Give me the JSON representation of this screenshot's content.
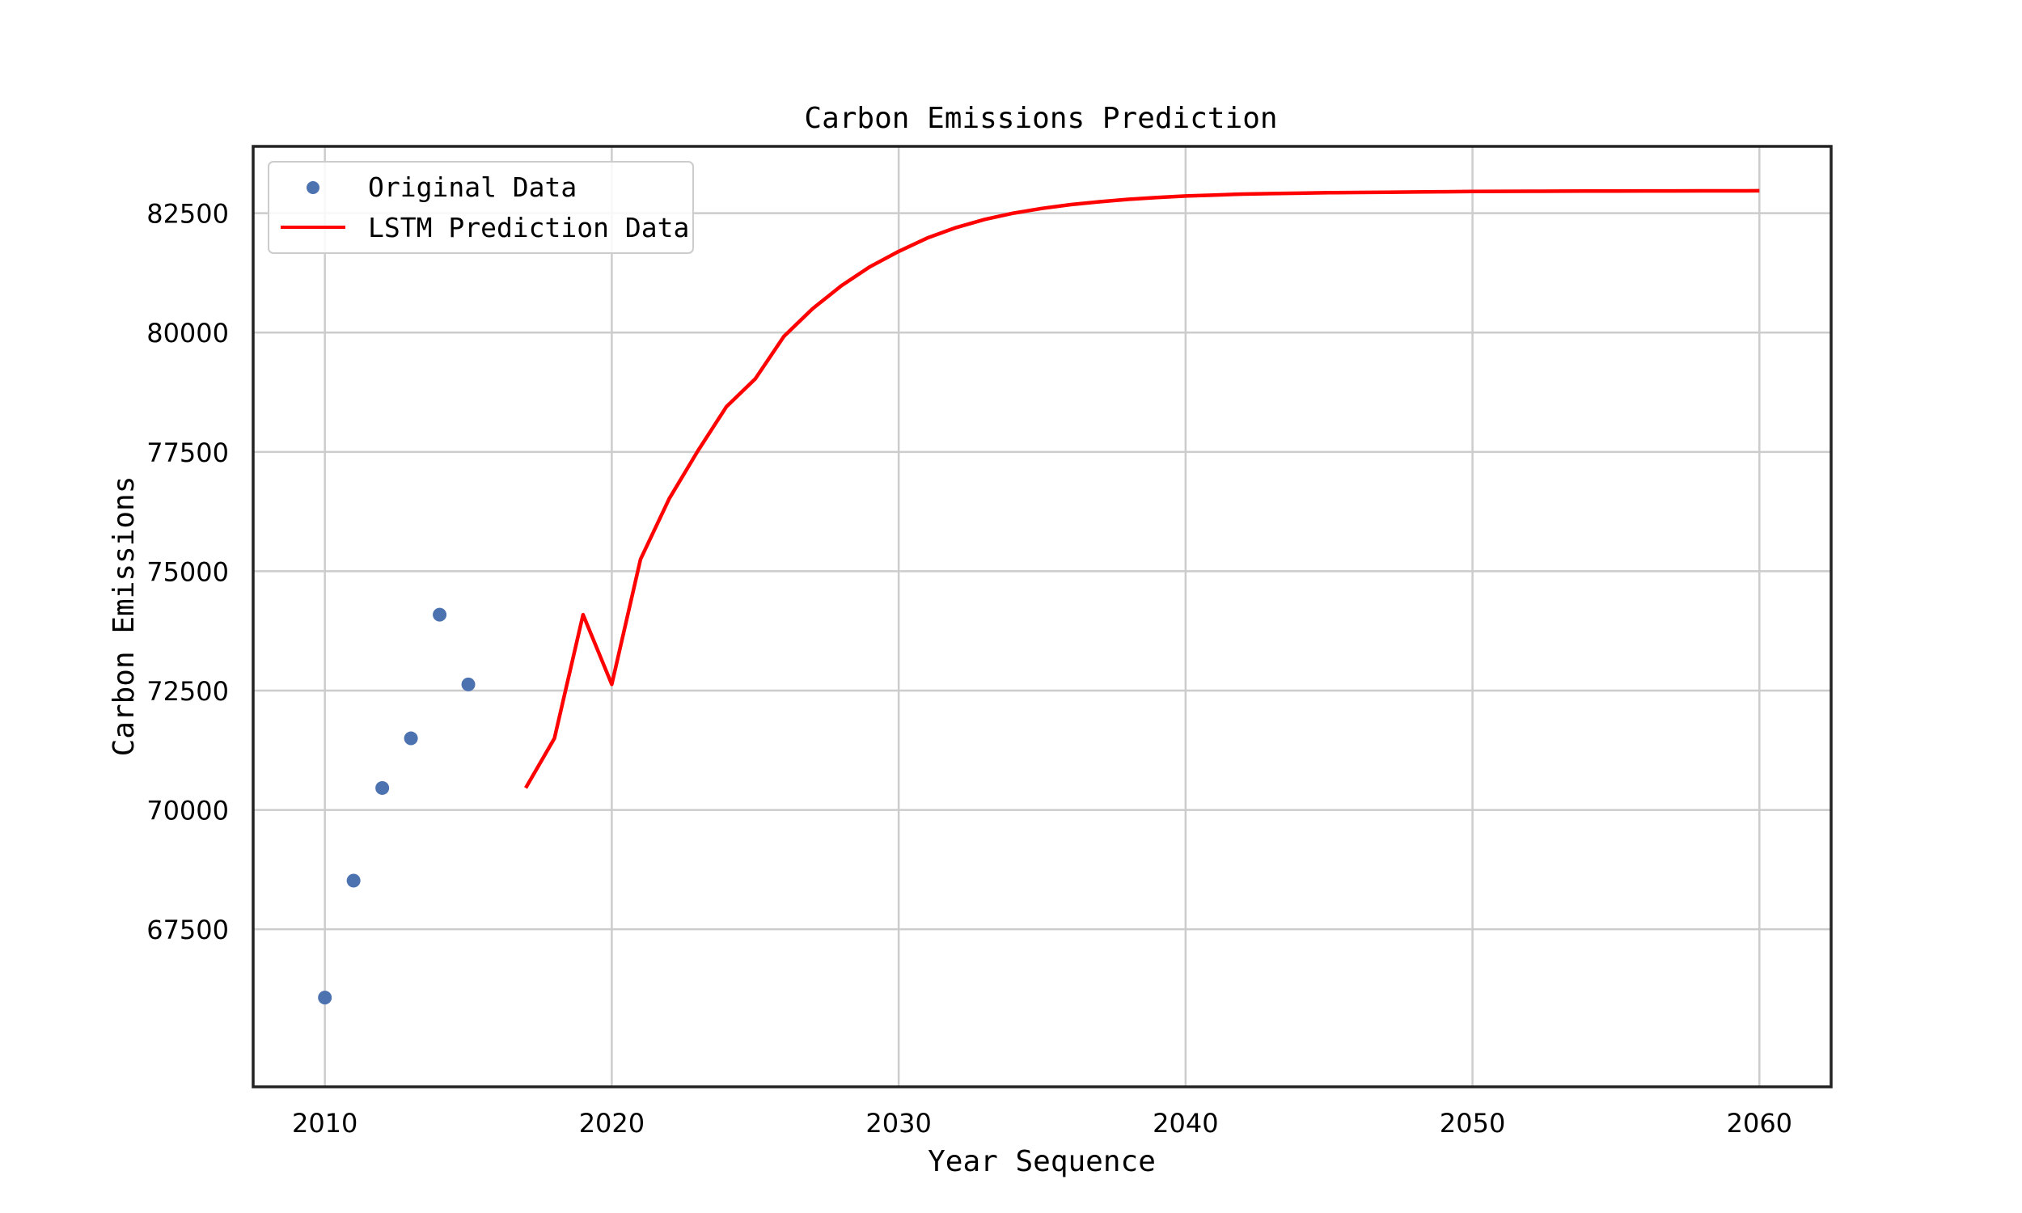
{
  "chart_data": {
    "type": "line",
    "title": "Carbon Emissions Prediction",
    "xlabel": "Year Sequence",
    "ylabel": "Carbon Emissions",
    "xlim": [
      2007.5,
      2062.5
    ],
    "ylim": [
      64200,
      83900
    ],
    "x_ticks": [
      2010,
      2020,
      2030,
      2040,
      2050,
      2060
    ],
    "y_ticks": [
      67500,
      70000,
      72500,
      75000,
      77500,
      80000,
      82500
    ],
    "grid": true,
    "legend_position": "top-left",
    "series": [
      {
        "name": "Original Data",
        "kind": "scatter",
        "color": "#4c72b0",
        "x": [
          2010,
          2011,
          2012,
          2013,
          2014,
          2015
        ],
        "values": [
          66070,
          68520,
          70460,
          71500,
          74090,
          72630
        ]
      },
      {
        "name": "LSTM Prediction Data",
        "kind": "line",
        "color": "#ff0000",
        "x": [
          2017,
          2018,
          2019,
          2020,
          2021,
          2022,
          2023,
          2024,
          2025,
          2026,
          2027,
          2028,
          2029,
          2030,
          2031,
          2032,
          2033,
          2034,
          2035,
          2036,
          2037,
          2038,
          2039,
          2040,
          2041,
          2042,
          2043,
          2044,
          2045,
          2046,
          2047,
          2048,
          2049,
          2050,
          2051,
          2052,
          2053,
          2054,
          2055,
          2056,
          2057,
          2058,
          2059,
          2060
        ],
        "values": [
          70460,
          71500,
          74090,
          72630,
          75250,
          76520,
          77520,
          78450,
          79030,
          79920,
          80500,
          80980,
          81380,
          81700,
          81980,
          82200,
          82370,
          82500,
          82600,
          82680,
          82740,
          82790,
          82830,
          82860,
          82880,
          82900,
          82910,
          82920,
          82930,
          82935,
          82940,
          82945,
          82950,
          82955,
          82958,
          82960,
          82962,
          82964,
          82965,
          82966,
          82967,
          82968,
          82969,
          82970
        ]
      }
    ]
  }
}
